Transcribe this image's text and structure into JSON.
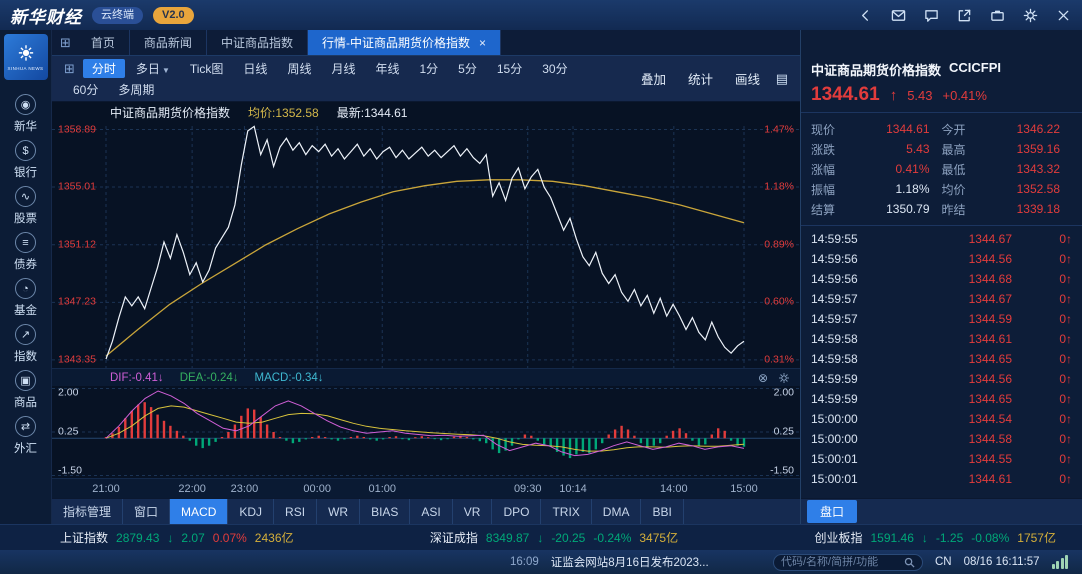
{
  "colors": {
    "red": "#e23c3c",
    "green": "#00a878",
    "yellow": "#d4af3a",
    "blue": "#2f7fe8",
    "price_line": "#eef3fa",
    "avg_line": "#c9a53a",
    "dif_line": "#cf5fd6",
    "dea_line": "#d8c33c",
    "grid": "#1b3354"
  },
  "titlebar": {
    "brand": "新华财经",
    "product": "云终端",
    "version": "V2.0"
  },
  "sidebar": {
    "logo_text": "XINHUA NEWS",
    "items": [
      {
        "label": "新华",
        "icon": "xinhua-icon"
      },
      {
        "label": "银行",
        "icon": "bank-icon"
      },
      {
        "label": "股票",
        "icon": "stocks-icon"
      },
      {
        "label": "债券",
        "icon": "bonds-icon"
      },
      {
        "label": "基金",
        "icon": "funds-icon"
      },
      {
        "label": "指数",
        "icon": "index-icon"
      },
      {
        "label": "商品",
        "icon": "commodity-icon"
      },
      {
        "label": "外汇",
        "icon": "forex-icon"
      }
    ]
  },
  "tabs": {
    "items": [
      {
        "label": "首页",
        "active": false
      },
      {
        "label": "商品新闻",
        "active": false
      },
      {
        "label": "中证商品指数",
        "active": false
      },
      {
        "label": "行情-中证商品期货价格指数",
        "active": true,
        "closable": true
      }
    ]
  },
  "toolbar": {
    "row1": [
      {
        "label": "分时",
        "active": true
      },
      {
        "label": "多日",
        "caret": true
      },
      {
        "label": "Tick图"
      },
      {
        "label": "日线"
      },
      {
        "label": "周线"
      },
      {
        "label": "月线"
      },
      {
        "label": "年线"
      },
      {
        "label": "1分"
      },
      {
        "label": "5分"
      },
      {
        "label": "15分"
      },
      {
        "label": "30分"
      }
    ],
    "row2": [
      {
        "label": "60分"
      },
      {
        "label": "多周期"
      }
    ],
    "right": [
      "叠加",
      "统计",
      "画线"
    ]
  },
  "chart_header": {
    "title": "中证商品期货价格指数",
    "avg_label": "均价:1352.58",
    "last_label": "最新:1344.61"
  },
  "macd_header": {
    "dif": "DIF:-0.41↓",
    "dea": "DEA:-0.24↓",
    "macd": "MACD:-0.34↓"
  },
  "indicator_tabs": {
    "items": [
      "指标管理",
      "窗口",
      "MACD",
      "KDJ",
      "RSI",
      "WR",
      "BIAS",
      "ASI",
      "VR",
      "DPO",
      "TRIX",
      "DMA",
      "BBI"
    ],
    "active": "MACD"
  },
  "order_book_label": "盘口",
  "quote": {
    "name": "中证商品期货价格指数",
    "code": "CCICFPI",
    "last": "1344.61",
    "arrow": "↑",
    "change": "5.43",
    "pct": "+0.41%",
    "fields": [
      {
        "label": "现价",
        "value": "1344.61",
        "tone": "red"
      },
      {
        "label": "今开",
        "value": "1346.22",
        "tone": "red"
      },
      {
        "label": "涨跌",
        "value": "5.43",
        "tone": "red"
      },
      {
        "label": "最高",
        "value": "1359.16",
        "tone": "red"
      },
      {
        "label": "涨幅",
        "value": "0.41%",
        "tone": "red"
      },
      {
        "label": "最低",
        "value": "1343.32",
        "tone": "red"
      },
      {
        "label": "振幅",
        "value": "1.18%",
        "tone": "plain"
      },
      {
        "label": "均价",
        "value": "1352.58",
        "tone": "red"
      },
      {
        "label": "结算",
        "value": "1350.79",
        "tone": "plain"
      },
      {
        "label": "昨结",
        "value": "1339.18",
        "tone": "red"
      }
    ]
  },
  "ticks": [
    {
      "time": "14:59:55",
      "price": "1344.67",
      "vol": "0"
    },
    {
      "time": "14:59:56",
      "price": "1344.56",
      "vol": "0"
    },
    {
      "time": "14:59:56",
      "price": "1344.68",
      "vol": "0"
    },
    {
      "time": "14:59:57",
      "price": "1344.67",
      "vol": "0"
    },
    {
      "time": "14:59:57",
      "price": "1344.59",
      "vol": "0"
    },
    {
      "time": "14:59:58",
      "price": "1344.61",
      "vol": "0"
    },
    {
      "time": "14:59:58",
      "price": "1344.65",
      "vol": "0"
    },
    {
      "time": "14:59:59",
      "price": "1344.56",
      "vol": "0"
    },
    {
      "time": "14:59:59",
      "price": "1344.65",
      "vol": "0"
    },
    {
      "time": "15:00:00",
      "price": "1344.54",
      "vol": "0"
    },
    {
      "time": "15:00:00",
      "price": "1344.58",
      "vol": "0"
    },
    {
      "time": "15:00:01",
      "price": "1344.55",
      "vol": "0"
    },
    {
      "time": "15:00:01",
      "price": "1344.61",
      "vol": "0"
    }
  ],
  "index_bar": [
    {
      "name": "上证指数",
      "value": "2879.43",
      "arrow": "↓",
      "change": "2.07",
      "pct": "0.07%",
      "pct_tone": "red",
      "amount": "2436亿"
    },
    {
      "name": "深证成指",
      "value": "8349.87",
      "arrow": "↓",
      "change": "-20.25",
      "pct": "-0.24%",
      "pct_tone": "green",
      "amount": "3475亿"
    },
    {
      "name": "创业板指",
      "value": "1591.46",
      "arrow": "↓",
      "change": "-1.25",
      "pct": "-0.08%",
      "pct_tone": "green",
      "amount": "1757亿"
    }
  ],
  "statusbar": {
    "time": "16:09",
    "news": "证监会网站8月16日发布2023...",
    "search_placeholder": "代码/名称/简拼/功能",
    "region": "CN",
    "datetime": "08/16 16:11:57"
  },
  "chart_data": [
    {
      "type": "line",
      "title": "中证商品期货价格指数 分时走势",
      "ylim": [
        1342.8,
        1359.4
      ],
      "y_ticks": [
        {
          "price": "1358.89",
          "pct": "1.47%"
        },
        {
          "price": "1355.01",
          "pct": "1.18%"
        },
        {
          "price": "1351.12",
          "pct": "0.89%"
        },
        {
          "price": "1347.23",
          "pct": "0.60%"
        },
        {
          "price": "1343.35",
          "pct": "0.31%"
        }
      ],
      "x_ticks": [
        {
          "label": "21:00",
          "pos": 0
        },
        {
          "label": "22:00",
          "pos": 0.135
        },
        {
          "label": "23:00",
          "pos": 0.217
        },
        {
          "label": "00:00",
          "pos": 0.331
        },
        {
          "label": "01:00",
          "pos": 0.433
        },
        {
          "label": "09:30",
          "pos": 0.661
        },
        {
          "label": "10:14",
          "pos": 0.732
        },
        {
          "label": "14:00",
          "pos": 0.89
        },
        {
          "label": "15:00",
          "pos": 1
        }
      ],
      "series": [
        {
          "name": "价格",
          "values": [
            1343.4,
            1344.6,
            1346.2,
            1347.6,
            1347.0,
            1347.6,
            1346.8,
            1348.2,
            1349.6,
            1351.3,
            1350.2,
            1351.8,
            1350.6,
            1349.1,
            1349.9,
            1348.6,
            1349.4,
            1350.9,
            1351.6,
            1352.3,
            1353.8,
            1356.5,
            1358.8,
            1359.1,
            1357.2,
            1358.2,
            1356.4,
            1357.7,
            1358.3,
            1357.5,
            1358.0,
            1357.2,
            1357.8,
            1357.4,
            1357.9,
            1357.1,
            1357.6,
            1356.9,
            1357.4,
            1357.9,
            1357.1,
            1357.6,
            1356.9,
            1357.4,
            1357.7,
            1357.0,
            1357.5,
            1356.9,
            1357.3,
            1357.7,
            1357.1,
            1357.5,
            1357.0,
            1357.4,
            1357.8,
            1357.1,
            1357.6,
            1357.0,
            1356.6,
            1357.2,
            1354.4,
            1355.3,
            1354.1,
            1355.6,
            1356.3,
            1354.9,
            1355.7,
            1356.2,
            1355.0,
            1354.3,
            1353.2,
            1352.1,
            1352.9,
            1351.5,
            1350.3,
            1349.7,
            1350.6,
            1349.2,
            1348.5,
            1349.1,
            1347.9,
            1347.3,
            1348.1,
            1347.0,
            1347.7,
            1346.5,
            1347.5,
            1346.3,
            1347.1,
            1346.3,
            1345.4,
            1346.2,
            1345.2,
            1344.7,
            1345.9,
            1344.9,
            1344.2,
            1343.8,
            1344.3,
            1344.6
          ]
        },
        {
          "name": "均价",
          "values": [
            1343.6,
            1345.4,
            1347.1,
            1348.5,
            1349.8,
            1351.1,
            1352.2,
            1353.2,
            1354.0,
            1354.7,
            1355.1,
            1355.4,
            1355.5,
            1355.5,
            1355.4,
            1355.1,
            1354.7,
            1354.3,
            1353.8,
            1353.2,
            1352.6
          ]
        }
      ]
    },
    {
      "type": "macd",
      "name": "MACD",
      "ylim": [
        -1.6,
        2.1
      ],
      "y_ticks": [
        "2.00",
        "0.25",
        "-1.50"
      ],
      "dif_last": -0.41,
      "dea_last": -0.24,
      "macd_last": -0.34,
      "histogram": [
        0.05,
        0.2,
        0.45,
        0.8,
        1.1,
        1.35,
        1.45,
        1.25,
        0.95,
        0.7,
        0.5,
        0.3,
        0.1,
        -0.1,
        -0.3,
        -0.4,
        -0.3,
        -0.15,
        0.05,
        0.25,
        0.55,
        0.9,
        1.2,
        1.15,
        0.85,
        0.55,
        0.25,
        0.05,
        -0.1,
        -0.2,
        -0.15,
        -0.05,
        0.05,
        0.1,
        0.05,
        -0.05,
        -0.1,
        -0.05,
        0.05,
        0.1,
        0.05,
        -0.05,
        -0.1,
        -0.05,
        0.05,
        0.08,
        -0.04,
        -0.08,
        0.04,
        0.08,
        0.04,
        -0.04,
        -0.08,
        -0.04,
        0.06,
        0.1,
        0.05,
        -0.05,
        -0.12,
        -0.2,
        -0.45,
        -0.6,
        -0.5,
        -0.3,
        -0.05,
        0.15,
        0.1,
        -0.1,
        -0.25,
        -0.35,
        -0.55,
        -0.7,
        -0.8,
        -0.65,
        -0.55,
        -0.6,
        -0.45,
        -0.2,
        0.15,
        0.35,
        0.5,
        0.35,
        0.1,
        -0.2,
        -0.4,
        -0.3,
        -0.2,
        0.1,
        0.3,
        0.4,
        0.2,
        -0.1,
        -0.3,
        -0.25,
        0.15,
        0.4,
        0.3,
        -0.1,
        -0.3,
        -0.34
      ],
      "dif": [
        0.0,
        0.5,
        1.1,
        1.6,
        1.9,
        1.7,
        1.4,
        1.0,
        0.7,
        0.4,
        0.3,
        0.5,
        0.9,
        1.3,
        1.5,
        1.3,
        1.0,
        0.7,
        0.45,
        0.3,
        0.2,
        0.25,
        0.3,
        0.2,
        0.15,
        0.1,
        0.12,
        0.08,
        0.1,
        0.12,
        -0.25,
        -0.5,
        -0.35,
        -0.2,
        -0.3,
        -0.55,
        -0.7,
        -0.65,
        -0.5,
        -0.3,
        -0.15,
        -0.3,
        -0.45,
        -0.35,
        -0.2,
        -0.3,
        -0.45,
        -0.35,
        -0.3,
        -0.41
      ],
      "dea": [
        0.0,
        0.2,
        0.5,
        0.9,
        1.2,
        1.3,
        1.25,
        1.1,
        0.95,
        0.8,
        0.65,
        0.6,
        0.65,
        0.8,
        0.95,
        1.0,
        0.98,
        0.9,
        0.75,
        0.6,
        0.48,
        0.4,
        0.35,
        0.3,
        0.26,
        0.22,
        0.19,
        0.16,
        0.14,
        0.1,
        0.0,
        -0.15,
        -0.25,
        -0.28,
        -0.3,
        -0.35,
        -0.45,
        -0.52,
        -0.52,
        -0.46,
        -0.38,
        -0.34,
        -0.35,
        -0.36,
        -0.32,
        -0.3,
        -0.32,
        -0.32,
        -0.28,
        -0.24
      ]
    }
  ]
}
